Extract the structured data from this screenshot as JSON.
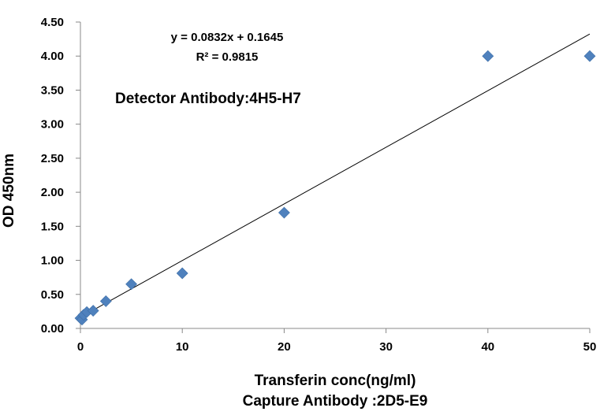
{
  "chart_data": {
    "type": "scatter",
    "xlabel": "Transferin  conc(ng/ml)",
    "xlabel_line2": "Capture Antibody :2D5-E9",
    "ylabel": "OD 450nm",
    "xlim": [
      0,
      50
    ],
    "ylim": [
      0,
      4.5
    ],
    "x_ticks": [
      "0",
      "10",
      "20",
      "30",
      "40",
      "50"
    ],
    "y_ticks": [
      "0.00",
      "0.50",
      "1.00",
      "1.50",
      "2.00",
      "2.50",
      "3.00",
      "3.50",
      "4.00",
      "4.50"
    ],
    "grid": false,
    "series": [
      {
        "marker": "diamond",
        "color": "#4F81BD",
        "points": [
          {
            "x": 0,
            "y": 0.15
          },
          {
            "x": 0.156,
            "y": 0.13
          },
          {
            "x": 0.3125,
            "y": 0.2
          },
          {
            "x": 0.625,
            "y": 0.24
          },
          {
            "x": 1.25,
            "y": 0.26
          },
          {
            "x": 2.5,
            "y": 0.4
          },
          {
            "x": 5,
            "y": 0.65
          },
          {
            "x": 10,
            "y": 0.81
          },
          {
            "x": 20,
            "y": 1.7
          },
          {
            "x": 40,
            "y": 4.0
          },
          {
            "x": 50,
            "y": 4.0
          }
        ]
      }
    ],
    "trendline": {
      "slope": 0.0832,
      "intercept": 0.1645,
      "x_range": [
        0,
        50
      ],
      "color": "#000000"
    },
    "equation_text": "y = 0.0832x + 0.1645",
    "r2_text": "R² = 0.9815",
    "annotation": "Detector Antibody:4H5-H7"
  }
}
